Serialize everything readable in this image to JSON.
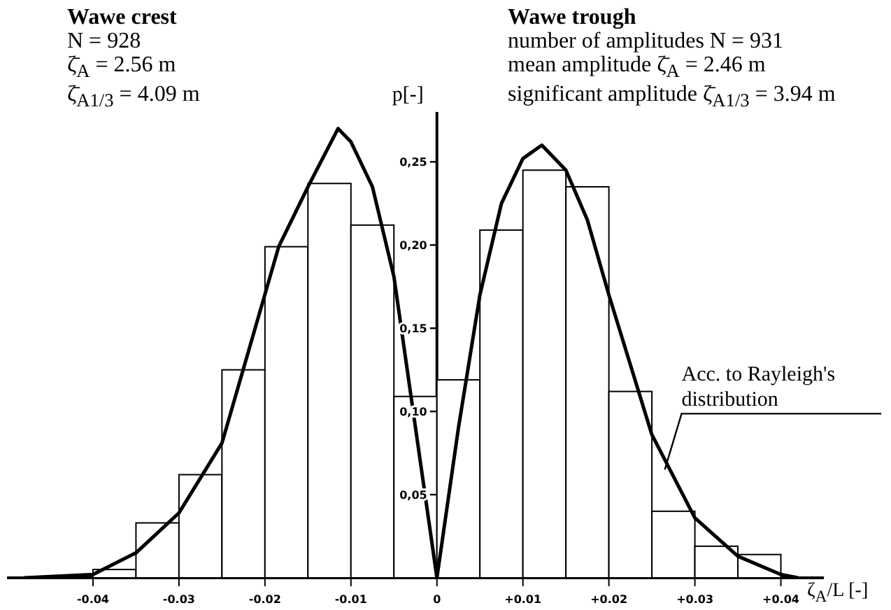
{
  "chart_data": {
    "type": "histogram",
    "xlabel": "ζ$_{A}$/L [-]",
    "ylabel": "p[-]",
    "bins": [
      -0.04,
      -0.035,
      -0.03,
      -0.025,
      -0.02,
      -0.015,
      -0.01,
      -0.005,
      0,
      0.005,
      0.01,
      0.015,
      0.02,
      0.025,
      0.03,
      0.035,
      0.04
    ],
    "values": [
      0.005,
      0.033,
      0.062,
      0.125,
      0.199,
      0.237,
      0.212,
      0.109,
      0.119,
      0.209,
      0.245,
      0.235,
      0.112,
      0.04,
      0.019,
      0.014
    ],
    "color": "#ffffff",
    "series": [
      {
        "type": "line",
        "color": "#000000",
        "x": [
          -0.048,
          -0.04,
          -0.035,
          -0.03,
          -0.025,
          -0.0184,
          -0.015,
          -0.0115,
          -0.01,
          -0.0075,
          -0.005,
          0
        ],
        "values": [
          0,
          0.002,
          0.015,
          0.039,
          0.081,
          0.199,
          0.235,
          0.27,
          0.262,
          0.235,
          0.181,
          0
        ]
      },
      {
        "type": "line",
        "color": "#000000",
        "x": [
          0,
          0.0025,
          0.005,
          0.0075,
          0.01,
          0.0122,
          0.015,
          0.0175,
          0.02,
          0.025,
          0.03,
          0.035,
          0.04,
          0.042
        ],
        "values": [
          0,
          0.09,
          0.17,
          0.225,
          0.252,
          0.26,
          0.245,
          0.215,
          0.17,
          0.086,
          0.036,
          0.013,
          0.002,
          0
        ]
      }
    ],
    "xlim": [
      -0.05,
      0.045
    ],
    "ylim": [
      0,
      0.28
    ],
    "xticks": [
      -0.04,
      -0.03,
      -0.02,
      -0.01,
      0,
      {
        "value": 0.01,
        "label": "+0.01"
      },
      {
        "value": 0.02,
        "label": "+0.02"
      },
      {
        "value": 0.03,
        "label": "+0.03"
      },
      {
        "value": 0.04,
        "label": "+0.04"
      }
    ],
    "yticks": [
      {
        "value": 0.05,
        "label": "0,05"
      },
      {
        "value": 0.1,
        "label": "0,10"
      },
      {
        "value": 0.15,
        "label": "0,15"
      },
      {
        "value": 0.2,
        "label": "0,20"
      },
      {
        "value": 0.25,
        "label": "0,25"
      }
    ],
    "grid": false,
    "legend": false,
    "annotations": [
      "Wawe crest",
      "N = 928",
      "ζ̄$_{A}$ = 2.56 m",
      "ζ̄$_{A1/3}$ = 4.09 m",
      "Wawe trough",
      "number of amplitudes N = 931",
      "mean amplitude ζ̄$_{A}$ = 2.46 m",
      "significant amplitude ζ̄$_{A1/3}$ = 3.94 m",
      {
        "text": "Acc. to Rayleigh's distribution",
        "x": 0.0265,
        "y": 0.065
      }
    ]
  }
}
